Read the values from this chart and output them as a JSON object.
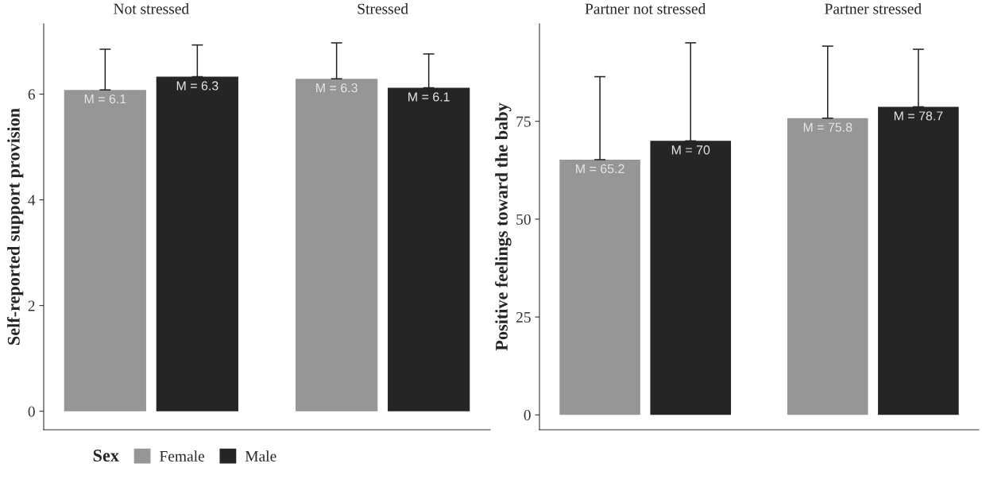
{
  "chart_data": [
    {
      "type": "bar",
      "ylabel": "Self-reported support provision",
      "categories": [
        "Not stressed",
        "Stressed"
      ],
      "ylim": [
        -0.35,
        7.33
      ],
      "yticks": [
        0,
        2,
        4,
        6
      ],
      "legend": "bottom left",
      "legend_title": "Sex",
      "grid": false,
      "series": [
        {
          "name": "Female",
          "color": "#969696",
          "values": [
            6.08,
            6.29
          ],
          "errors": [
            [
              6.08,
              6.85
            ],
            [
              6.29,
              6.97
            ]
          ],
          "value_labels": [
            "M = 6.1",
            "M = 6.3"
          ]
        },
        {
          "name": "Male",
          "color": "#252525",
          "values": [
            6.33,
            6.12
          ],
          "errors": [
            [
              6.33,
              6.93
            ],
            [
              6.12,
              6.76
            ]
          ],
          "value_labels": [
            "M = 6.3",
            "M = 6.1"
          ]
        }
      ]
    },
    {
      "type": "bar",
      "ylabel": "Positive feelings toward the baby",
      "categories": [
        "Partner not stressed",
        "Partner stressed"
      ],
      "ylim": [
        -3.8,
        99.9
      ],
      "yticks": [
        0,
        25,
        50,
        75
      ],
      "grid": false,
      "series": [
        {
          "color": "#969696",
          "values": [
            65.2,
            75.8
          ],
          "errors": [
            [
              65.2,
              86.4
            ],
            [
              75.8,
              94.2
            ]
          ],
          "value_labels": [
            "M = 65.2",
            "M = 75.8"
          ]
        },
        {
          "color": "#252525",
          "values": [
            70,
            78.7
          ],
          "errors": [
            [
              70,
              95.05
            ],
            [
              78.7,
              93.4
            ]
          ],
          "value_labels": [
            "M = 70",
            "M = 78.7"
          ]
        }
      ]
    }
  ]
}
